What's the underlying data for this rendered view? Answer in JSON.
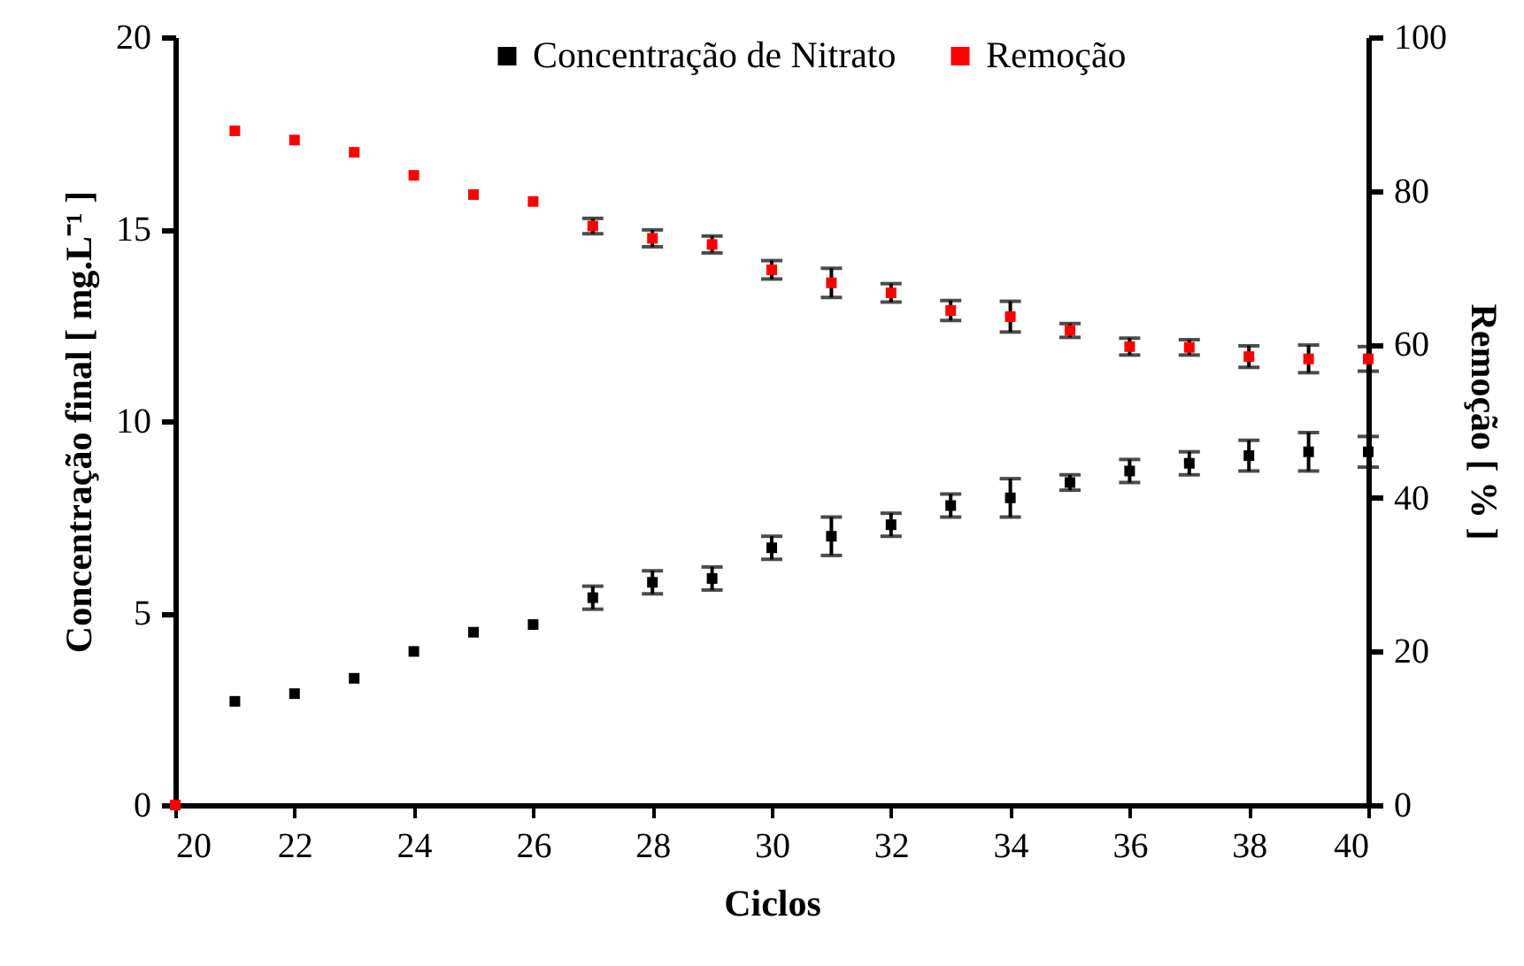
{
  "chart_data": {
    "type": "scatter",
    "xlabel": "Ciclos",
    "ylabel": "Concentração final [ mg.L⁻¹ ]",
    "y2label": "Remoção [ % ]",
    "xlim": [
      20,
      40
    ],
    "xticks": [
      20,
      22,
      24,
      26,
      28,
      30,
      32,
      34,
      36,
      38,
      40
    ],
    "ylim": [
      0,
      20
    ],
    "yticks": [
      0,
      5,
      10,
      15,
      20
    ],
    "y2lim": [
      0,
      100
    ],
    "y2ticks": [
      0,
      20,
      40,
      60,
      80,
      100
    ],
    "grid": false,
    "legend": "top",
    "marker": "square",
    "series": [
      {
        "name": "Concentração de Nitrato",
        "color": "#000000",
        "x": [
          21,
          22,
          23,
          24,
          25,
          26,
          27,
          28,
          29,
          30,
          31,
          32,
          33,
          34,
          35,
          36,
          37,
          38,
          39,
          40
        ],
        "values": [
          2.7,
          2.9,
          3.3,
          4.0,
          4.5,
          4.7,
          5.4,
          5.8,
          5.9,
          6.7,
          7.0,
          7.3,
          7.8,
          8.0,
          8.4,
          8.7,
          8.9,
          9.1,
          9.2,
          9.2
        ],
        "errors": [
          null,
          null,
          null,
          null,
          null,
          null,
          0.3,
          0.3,
          0.3,
          0.3,
          0.5,
          0.3,
          0.3,
          0.5,
          0.2,
          0.3,
          0.3,
          0.4,
          0.5,
          0.4
        ]
      },
      {
        "name": "Remoção",
        "color": "#ff0000",
        "axis": "y2",
        "x": [
          20,
          21,
          22,
          23,
          24,
          25,
          26,
          27,
          28,
          29,
          30,
          31,
          32,
          33,
          34,
          35,
          36,
          37,
          38,
          39,
          40
        ],
        "values": [
          0,
          87.8,
          86.6,
          85.0,
          82.0,
          79.5,
          78.6,
          75.4,
          73.8,
          73.0,
          69.7,
          68.0,
          66.7,
          64.4,
          63.6,
          61.8,
          59.7,
          59.6,
          58.4,
          58.1,
          58.1
        ],
        "errors": [
          null,
          null,
          null,
          null,
          null,
          null,
          null,
          1.0,
          1.1,
          1.1,
          1.2,
          1.9,
          1.2,
          1.3,
          2.0,
          0.9,
          1.1,
          1.0,
          1.4,
          1.8,
          1.6
        ]
      }
    ]
  }
}
